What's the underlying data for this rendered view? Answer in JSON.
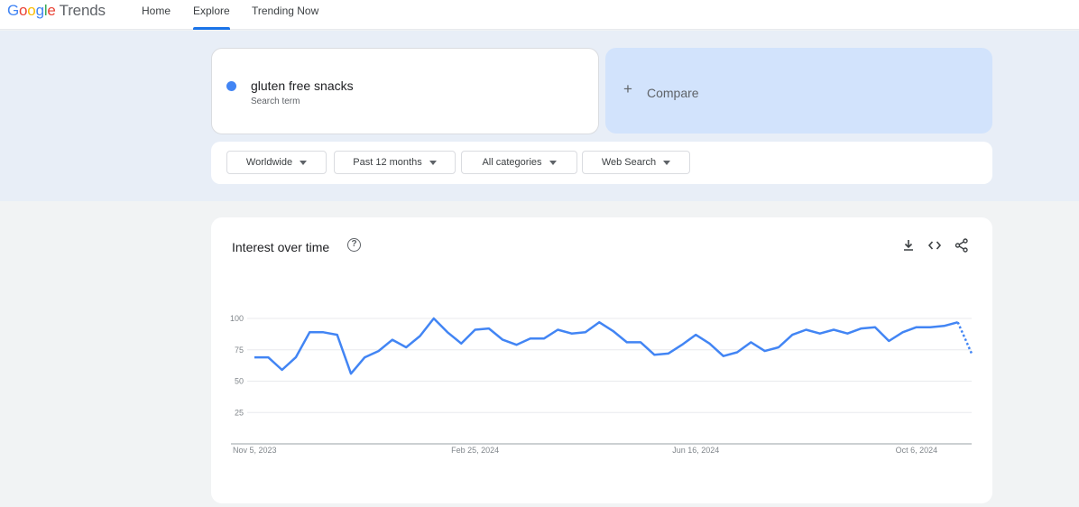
{
  "header": {
    "logo_google": [
      "G",
      "o",
      "o",
      "g",
      "l",
      "e"
    ],
    "logo_trends": "Trends",
    "nav": [
      {
        "label": "Home"
      },
      {
        "label": "Explore"
      },
      {
        "label": "Trending Now"
      }
    ],
    "active_nav": "Explore"
  },
  "search_term": {
    "name": "gluten free snacks",
    "type": "Search term",
    "color": "#4285f4"
  },
  "compare": {
    "label": "Compare",
    "icon": "plus-icon"
  },
  "filters": [
    {
      "label": "Worldwide"
    },
    {
      "label": "Past 12 months"
    },
    {
      "label": "All categories"
    },
    {
      "label": "Web Search"
    }
  ],
  "chart_panel": {
    "title": "Interest over time",
    "help_icon": "help-circle-icon",
    "actions": [
      "download-icon",
      "embed-code-icon",
      "share-icon"
    ]
  },
  "chart_data": {
    "type": "line",
    "title": "Interest over time",
    "xlabel": "",
    "ylabel": "",
    "ylim": [
      0,
      100
    ],
    "y_ticks": [
      25,
      50,
      75,
      100
    ],
    "x_tick_labels": [
      "Nov 5, 2023",
      "Feb 25, 2024",
      "Jun 16, 2024",
      "Oct 6, 2024"
    ],
    "x_tick_indices": [
      0,
      16,
      32,
      48
    ],
    "grid": true,
    "series": [
      {
        "color": "#4285f4",
        "values": [
          69,
          69,
          59,
          69,
          89,
          89,
          87,
          56,
          69,
          74,
          83,
          77,
          86,
          100,
          89,
          80,
          91,
          92,
          83,
          79,
          84,
          84,
          91,
          88,
          89,
          97,
          90,
          81,
          81,
          71,
          72,
          79,
          87,
          80,
          70,
          73,
          81,
          74,
          77,
          87,
          91,
          88,
          91,
          88,
          92,
          93,
          82,
          89,
          93,
          93,
          94,
          97,
          72
        ],
        "partial_last_point": true
      }
    ]
  }
}
